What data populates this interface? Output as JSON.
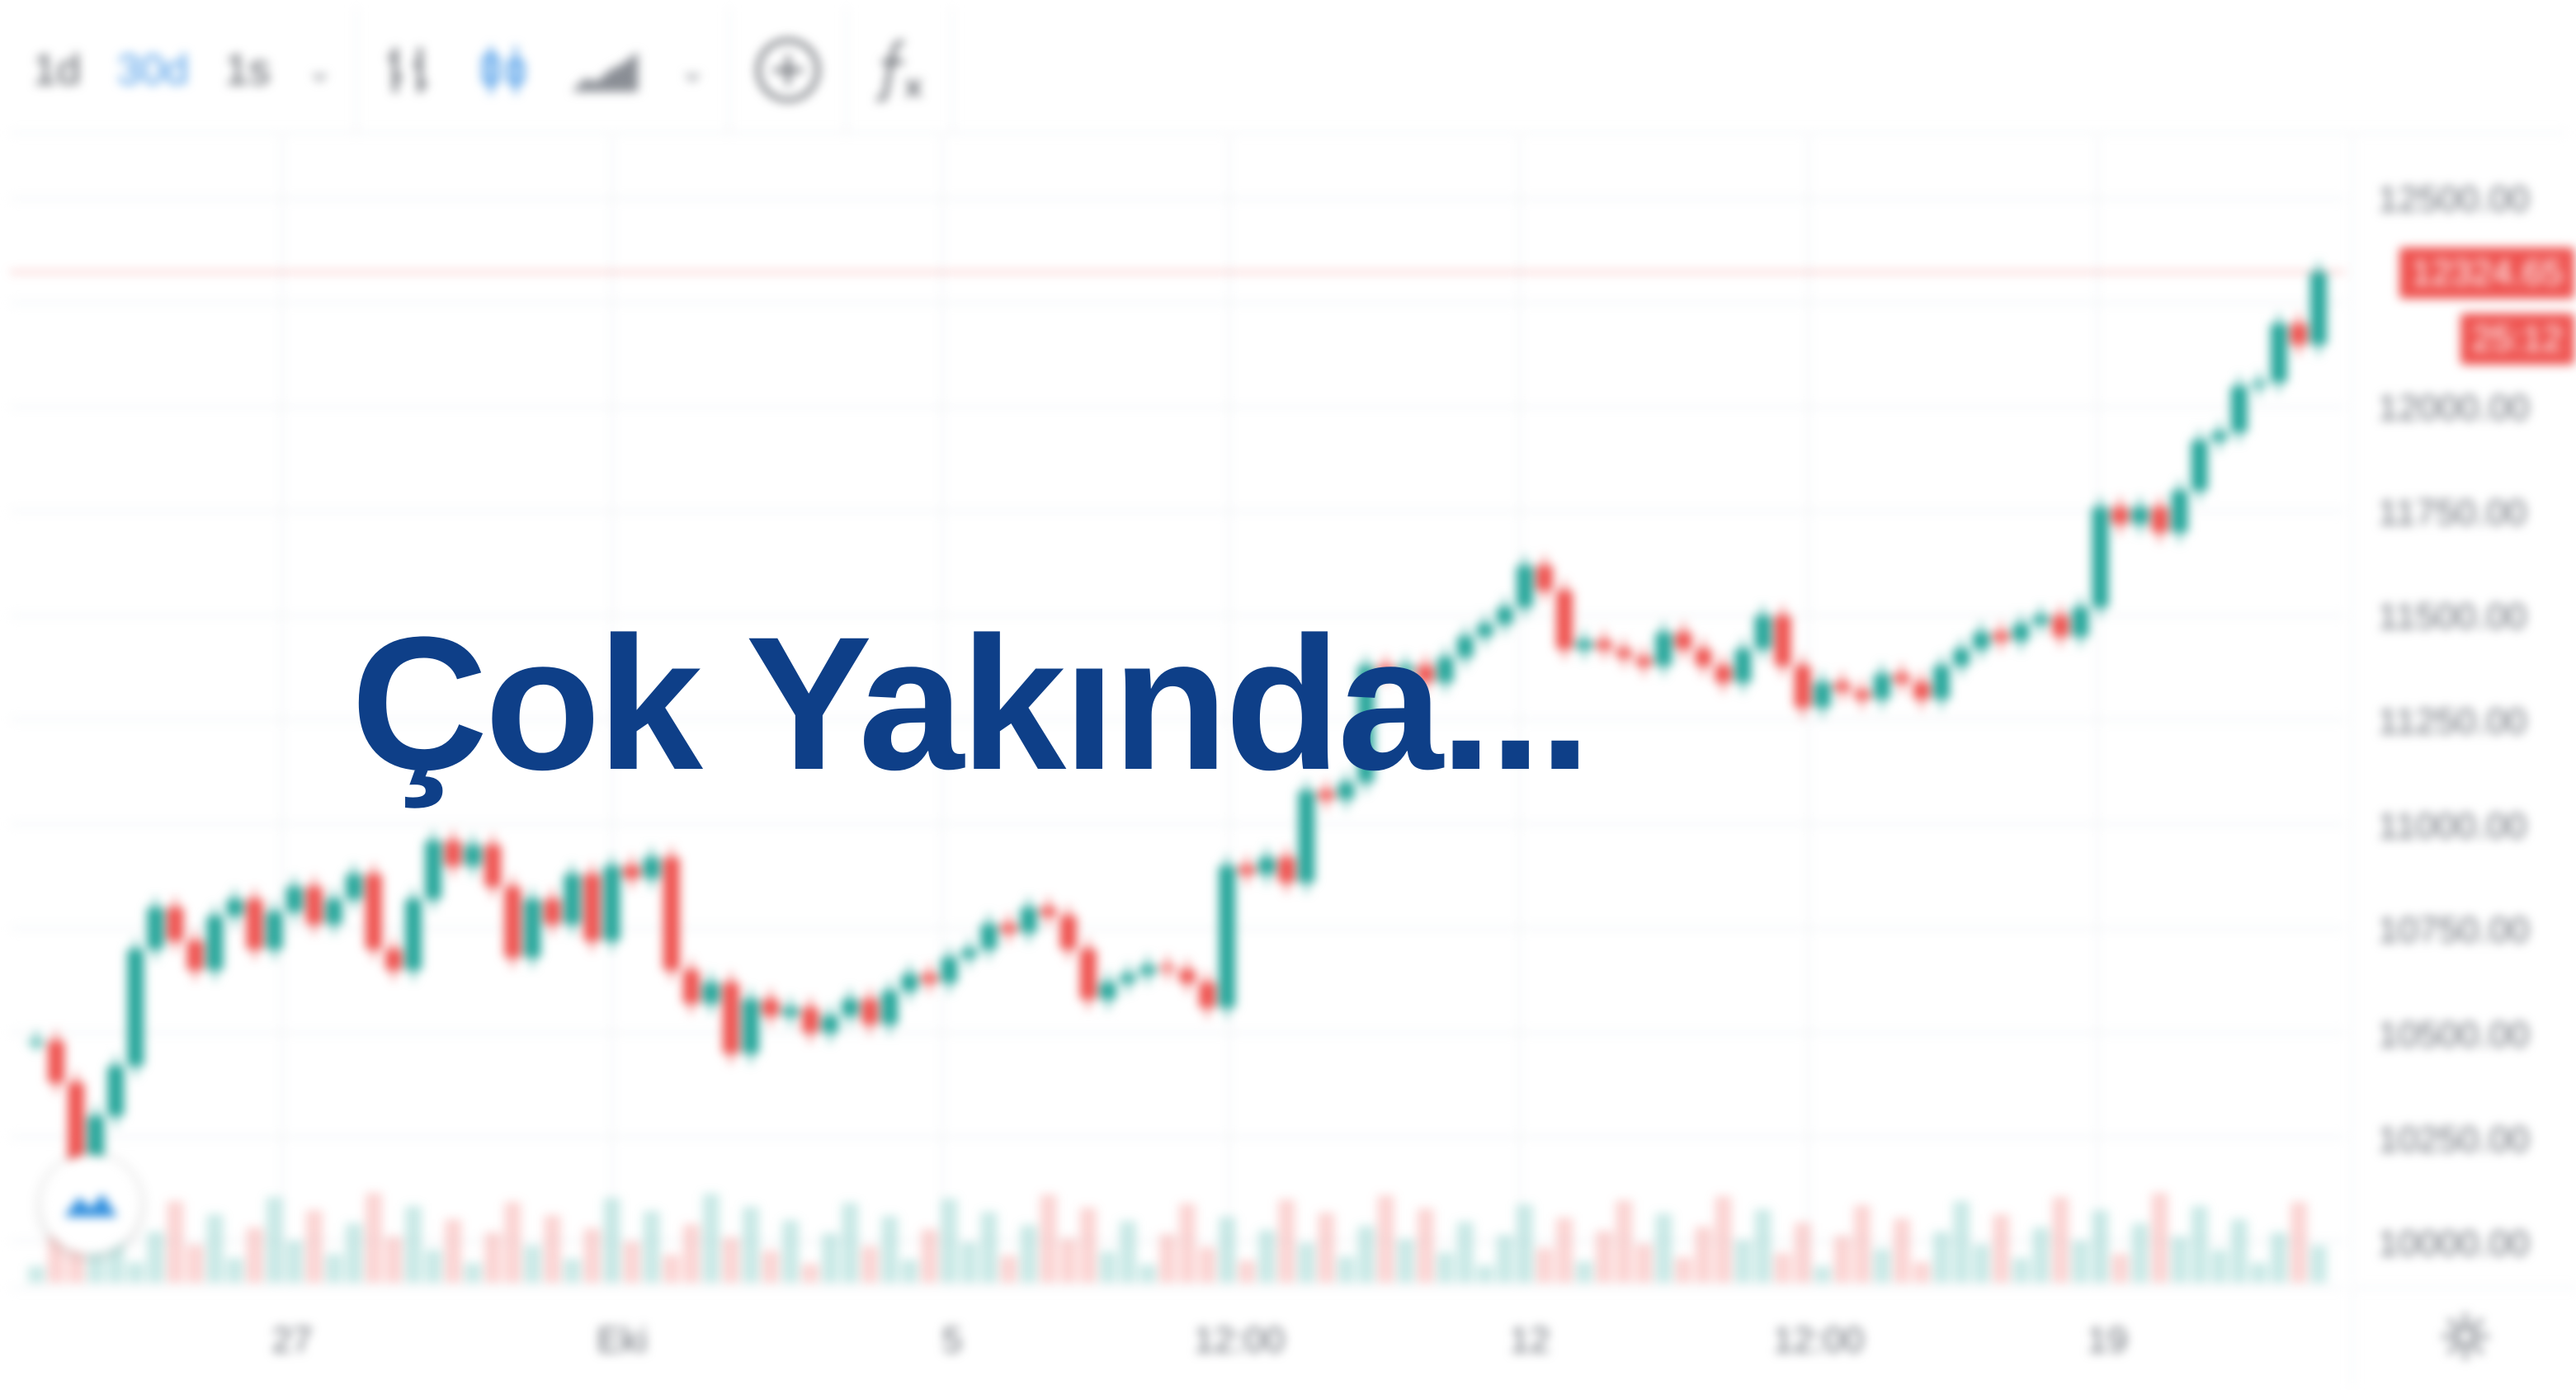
{
  "toolbar": {
    "intervals": [
      "1d",
      "30d",
      "1s"
    ],
    "active_interval": "30d"
  },
  "price_axis": {
    "ticks": [
      "12500.00",
      "12000.00",
      "11750.00",
      "11500.00",
      "11250.00",
      "11000.00",
      "10750.00",
      "10500.00",
      "10250.00",
      "10000.00"
    ],
    "last_price": "12324.65",
    "countdown": "25:12"
  },
  "time_axis": {
    "ticks": [
      "27",
      "Eki",
      "5",
      "12:00",
      "12",
      "12:00",
      "19"
    ]
  },
  "overlay": {
    "message": "Çok Yakında..."
  },
  "colors": {
    "up": "#26a69a",
    "down": "#ef5350",
    "accent": "#4d9ce8",
    "overlay_text": "#0e3f88"
  },
  "chart_data": {
    "type": "line",
    "ylim": [
      9900,
      12650
    ],
    "series": [
      {
        "values": [
          10480,
          10380,
          10150,
          10300,
          10420,
          10700,
          10800,
          10720,
          10650,
          10780,
          10820,
          10700,
          10790,
          10850,
          10760,
          10820,
          10880,
          10700,
          10650,
          10820,
          10960,
          10900,
          10950,
          10850,
          10680,
          10820,
          10760,
          10880,
          10720,
          10900,
          10870,
          10920,
          10650,
          10570,
          10620,
          10450,
          10580,
          10540,
          10560,
          10500,
          10540,
          10580,
          10520,
          10600,
          10640,
          10620,
          10680,
          10700,
          10760,
          10740,
          10800,
          10780,
          10700,
          10580,
          10620,
          10640,
          10660,
          10650,
          10620,
          10560,
          10900,
          10880,
          10920,
          10860,
          11080,
          11060,
          11100,
          11380,
          11360,
          11380,
          11340,
          11400,
          11450,
          11480,
          11520,
          11620,
          11560,
          11420,
          11440,
          11420,
          11400,
          11380,
          11460,
          11420,
          11380,
          11340,
          11420,
          11500,
          11380,
          11280,
          11340,
          11320,
          11300,
          11360,
          11340,
          11300,
          11380,
          11420,
          11460,
          11440,
          11480,
          11500,
          11450,
          11520,
          11760,
          11720,
          11760,
          11700,
          11800,
          11920,
          11940,
          12050,
          12060,
          12200,
          12150,
          12324
        ]
      }
    ]
  }
}
